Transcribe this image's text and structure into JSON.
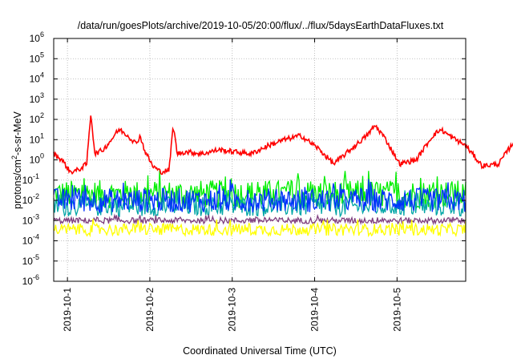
{
  "chart_data": {
    "type": "line",
    "title": "/data/run/goesPlots/archive/2019-10-05/20:00/flux/../flux/5daysEarthDataFluxes.txt",
    "xlabel": "Coordinated Universal Time (UTC)",
    "ylabel": {
      "base": "protons/cm",
      "sup": "2",
      "rest": "-s-sr-MeV"
    },
    "yscale": "log",
    "ylim_exp": [
      -6,
      6
    ],
    "yticks": [
      {
        "base": "10",
        "exp": "-6"
      },
      {
        "base": "10",
        "exp": "-5"
      },
      {
        "base": "10",
        "exp": "-4"
      },
      {
        "base": "10",
        "exp": "-3"
      },
      {
        "base": "10",
        "exp": "-2"
      },
      {
        "base": "10",
        "exp": "-1"
      },
      {
        "base": "10",
        "exp": "0"
      },
      {
        "base": "10",
        "exp": "1"
      },
      {
        "base": "10",
        "exp": "2"
      },
      {
        "base": "10",
        "exp": "3"
      },
      {
        "base": "10",
        "exp": "4"
      },
      {
        "base": "10",
        "exp": "5"
      },
      {
        "base": "10",
        "exp": "6"
      }
    ],
    "xlim": [
      "2019-09-30T20:00",
      "2019-10-05T20:00"
    ],
    "xticks": [
      "2019-10-1",
      "2019-10-2",
      "2019-10-3",
      "2019-10-4",
      "2019-10-5"
    ],
    "grid": true,
    "series": [
      {
        "color": "#ff0000",
        "log10_x_day": [
          0,
          0.1,
          0.2,
          0.3,
          0.4,
          0.45,
          0.5,
          0.6,
          0.7,
          0.75,
          0.8,
          0.9,
          1.0,
          1.05,
          1.1,
          1.2,
          1.3,
          1.4,
          1.45,
          1.5,
          1.6,
          1.8,
          2.0,
          2.2,
          2.4,
          2.6,
          2.8,
          3.0,
          3.2,
          3.4,
          3.6,
          3.8,
          3.9,
          4.0,
          4.2,
          4.4,
          4.6,
          4.7,
          4.8,
          5.0,
          5.2,
          5.4,
          5.6,
          5.8,
          5.86
        ],
        "log10_values": [
          0.3,
          0.0,
          -0.6,
          -0.5,
          -0.2,
          2.3,
          0.3,
          0.5,
          1.0,
          1.3,
          1.5,
          1.2,
          0.8,
          1.2,
          0.5,
          -0.3,
          -0.6,
          -0.5,
          1.7,
          0.3,
          0.4,
          0.3,
          0.5,
          0.4,
          0.3,
          0.7,
          1.0,
          1.2,
          0.6,
          -0.2,
          0.5,
          1.2,
          1.7,
          1.2,
          -0.2,
          0.0,
          1.2,
          1.5,
          1.2,
          0.7,
          -0.3,
          -0.2,
          1.0,
          1.5,
          1.3
        ]
      },
      {
        "color": "#00ee00",
        "log10_level": -1.7,
        "log10_noise": 0.7
      },
      {
        "color": "#00a6a6",
        "log10_level": -2.3,
        "log10_noise": 0.5
      },
      {
        "color": "#0030ff",
        "log10_level": -2.0,
        "log10_noise": 0.6
      },
      {
        "color": "#7f3f7f",
        "log10_level": -3.0,
        "log10_noise": 0.15
      },
      {
        "color": "#ffff00",
        "log10_level": -3.45,
        "log10_noise": 0.3
      }
    ]
  }
}
